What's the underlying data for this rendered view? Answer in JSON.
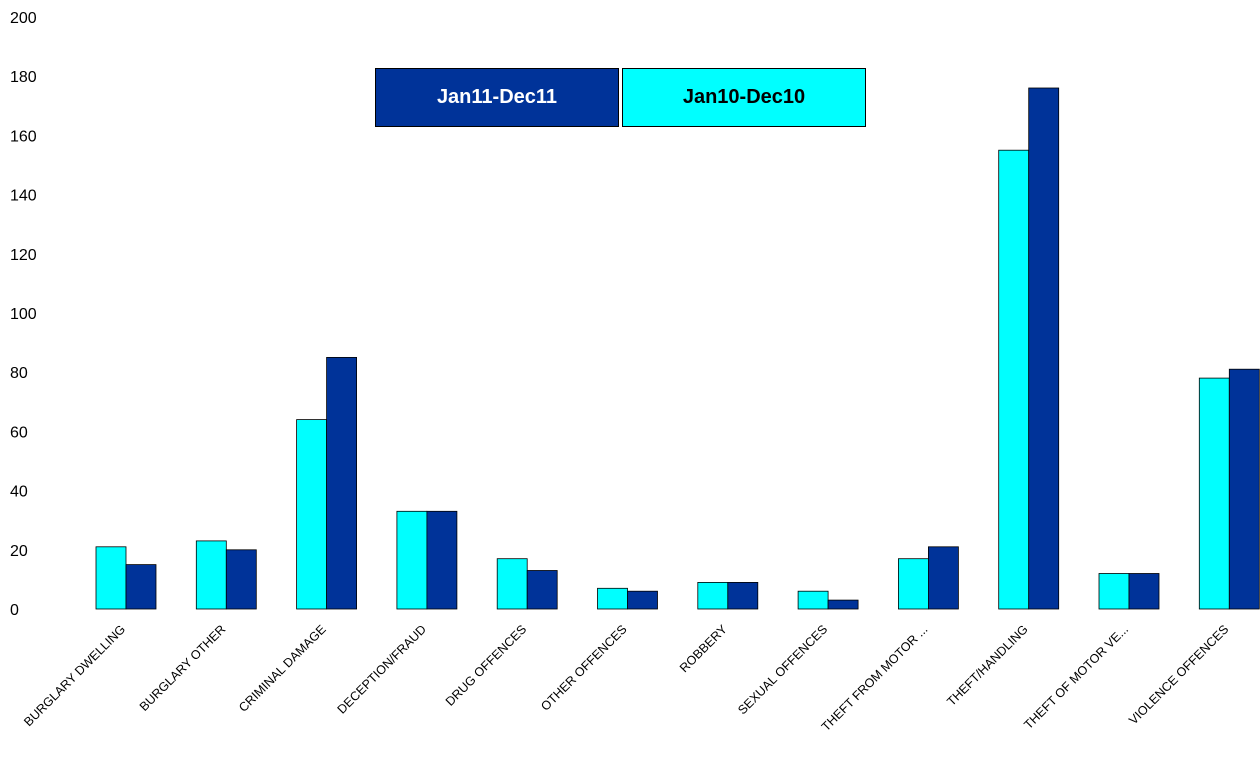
{
  "chart_data": {
    "type": "bar",
    "title": "",
    "xlabel": "",
    "ylabel": "",
    "ylim": [
      0,
      200
    ],
    "yticks": [
      0,
      20,
      40,
      60,
      80,
      100,
      120,
      140,
      160,
      180,
      200
    ],
    "grid": false,
    "legend_position": "top-center",
    "categories": [
      "BURGLARY DWELLING",
      "BURGLARY OTHER",
      "CRIMINAL DAMAGE",
      "DECEPTION/FRAUD",
      "DRUG OFFENCES",
      "OTHER OFFENCES",
      "ROBBERY",
      "SEXUAL OFFENCES",
      "THEFT FROM MOTOR ...",
      "THEFT/HANDLING",
      "THEFT OF MOTOR VE...",
      "VIOLENCE OFFENCES"
    ],
    "series": [
      {
        "name": "Jan10-Dec10",
        "color": "#00FFFF",
        "values": [
          21,
          23,
          64,
          33,
          17,
          7,
          9,
          6,
          17,
          155,
          12,
          78
        ]
      },
      {
        "name": "Jan11-Dec11",
        "color": "#003399",
        "values": [
          15,
          20,
          85,
          33,
          13,
          6,
          9,
          3,
          21,
          176,
          12,
          81
        ]
      }
    ],
    "legend": [
      {
        "name": "Jan11-Dec11",
        "color": "#003399"
      },
      {
        "name": "Jan10-Dec10",
        "color": "#00FFFF"
      }
    ]
  }
}
